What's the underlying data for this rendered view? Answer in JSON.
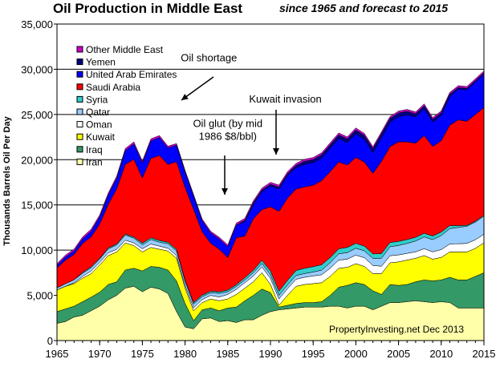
{
  "chart_data": {
    "type": "area",
    "stacked": true,
    "title": "Oil Production in Middle East",
    "subtitle": "since 1965 and forecast to 2015",
    "ylabel": "Thousands Barrels Oil Per Day",
    "xlabel": "",
    "xlim": [
      1965,
      2015
    ],
    "ylim": [
      0,
      35000
    ],
    "x_ticks": [
      1965,
      1970,
      1975,
      1980,
      1985,
      1990,
      1995,
      2000,
      2005,
      2010,
      2015
    ],
    "y_ticks": [
      0,
      5000,
      10000,
      15000,
      20000,
      25000,
      30000,
      35000
    ],
    "x_tick_labels": [
      "1965",
      "1970",
      "1975",
      "1980",
      "1985",
      "1990",
      "1995",
      "2000",
      "2005",
      "2010",
      "2015"
    ],
    "y_tick_labels": [
      "0",
      "5,000",
      "10,000",
      "15,000",
      "20,000",
      "25,000",
      "30,000",
      "35,000"
    ],
    "grid": true,
    "legend_position": "top-left",
    "source_note": "PropertyInvesting.net  Dec 2013",
    "x": [
      1965,
      1966,
      1967,
      1968,
      1969,
      1970,
      1971,
      1972,
      1973,
      1974,
      1975,
      1976,
      1977,
      1978,
      1979,
      1980,
      1981,
      1982,
      1983,
      1984,
      1985,
      1986,
      1987,
      1988,
      1989,
      1990,
      1991,
      1992,
      1993,
      1994,
      1995,
      1996,
      1997,
      1998,
      1999,
      2000,
      2001,
      2002,
      2003,
      2004,
      2005,
      2006,
      2007,
      2008,
      2009,
      2010,
      2011,
      2012,
      2013,
      2014,
      2015
    ],
    "series": [
      {
        "name": "Iran",
        "color": "#FFFFAA",
        "values": [
          1900,
          2100,
          2600,
          2800,
          3300,
          3800,
          4500,
          5000,
          5800,
          6000,
          5400,
          5900,
          5700,
          5200,
          3200,
          1500,
          1300,
          2400,
          2500,
          2100,
          2200,
          2000,
          2300,
          2300,
          2800,
          3200,
          3400,
          3500,
          3600,
          3700,
          3700,
          3700,
          3800,
          3800,
          3600,
          3800,
          3800,
          3400,
          3800,
          4200,
          4200,
          4300,
          4400,
          4300,
          4200,
          4300,
          4200,
          3600,
          3600,
          3600,
          3600
        ]
      },
      {
        "name": "Iraq",
        "color": "#339966",
        "values": [
          1300,
          1400,
          1200,
          1500,
          1500,
          1550,
          1700,
          1500,
          2000,
          2000,
          2300,
          2300,
          2400,
          2600,
          3400,
          2600,
          900,
          1000,
          1100,
          1200,
          1400,
          1700,
          2100,
          2700,
          2900,
          2100,
          300,
          400,
          500,
          500,
          500,
          600,
          1200,
          2100,
          2500,
          2600,
          2400,
          2100,
          1300,
          2000,
          1900,
          1900,
          2100,
          2400,
          2400,
          2400,
          2800,
          3100,
          3100,
          3500,
          3900
        ]
      },
      {
        "name": "Kuwait",
        "color": "#FFFF00",
        "values": [
          2400,
          2500,
          2500,
          2600,
          2600,
          3000,
          3200,
          3300,
          3000,
          2500,
          2100,
          2100,
          2000,
          2100,
          2500,
          1700,
          1100,
          800,
          1000,
          1100,
          1000,
          1400,
          1400,
          1500,
          1800,
          900,
          200,
          1100,
          1900,
          2000,
          2100,
          2100,
          2100,
          2100,
          2000,
          2100,
          2000,
          1900,
          2300,
          2400,
          2600,
          2700,
          2600,
          2700,
          2400,
          2500,
          2800,
          3100,
          3100,
          3100,
          3300
        ]
      },
      {
        "name": "Oman",
        "color": "#FFFFFF",
        "values": [
          0,
          0,
          100,
          200,
          300,
          300,
          300,
          300,
          300,
          300,
          350,
          370,
          340,
          310,
          300,
          290,
          330,
          330,
          390,
          420,
          500,
          560,
          600,
          640,
          640,
          680,
          700,
          740,
          780,
          800,
          850,
          880,
          900,
          900,
          900,
          950,
          960,
          900,
          820,
          780,
          770,
          740,
          710,
          760,
          810,
          860,
          880,
          910,
          940,
          950,
          960
        ]
      },
      {
        "name": "Qatar",
        "color": "#99CCFF",
        "values": [
          230,
          290,
          320,
          340,
          360,
          360,
          430,
          480,
          570,
          520,
          440,
          500,
          440,
          490,
          510,
          470,
          400,
          330,
          300,
          400,
          300,
          330,
          300,
          360,
          380,
          410,
          400,
          420,
          420,
          410,
          430,
          510,
          620,
          700,
          720,
          760,
          760,
          780,
          880,
          990,
          1050,
          1100,
          1200,
          1300,
          1350,
          1550,
          1700,
          1800,
          1900,
          1950,
          2000
        ]
      },
      {
        "name": "Syria",
        "color": "#33CCCC",
        "values": [
          0,
          0,
          0,
          100,
          100,
          80,
          110,
          110,
          110,
          130,
          190,
          190,
          180,
          170,
          170,
          170,
          170,
          170,
          170,
          170,
          180,
          190,
          250,
          270,
          350,
          400,
          470,
          500,
          550,
          580,
          590,
          600,
          560,
          550,
          580,
          540,
          520,
          500,
          520,
          470,
          450,
          430,
          410,
          400,
          400,
          390,
          330,
          200,
          100,
          100,
          100
        ]
      },
      {
        "name": "Saudi Arabia",
        "color": "#FF0000",
        "values": [
          2200,
          2600,
          2800,
          3200,
          3300,
          3800,
          4800,
          6100,
          7700,
          8600,
          7200,
          8800,
          9400,
          8600,
          9700,
          10200,
          10300,
          7000,
          5300,
          4700,
          3600,
          5200,
          4600,
          5700,
          5600,
          7100,
          8800,
          9100,
          9000,
          9000,
          9000,
          9300,
          9500,
          9600,
          9100,
          9500,
          9300,
          8900,
          10200,
          10600,
          11000,
          10800,
          10400,
          10800,
          9900,
          10100,
          11100,
          11700,
          11500,
          11800,
          11900
        ]
      },
      {
        "name": "United Arab Emirates",
        "color": "#0000FF",
        "values": [
          280,
          360,
          380,
          500,
          630,
          780,
          1060,
          1200,
          1530,
          1700,
          1660,
          1930,
          2000,
          1830,
          1830,
          1720,
          1470,
          1250,
          1150,
          1150,
          1200,
          1400,
          1600,
          1600,
          2000,
          2300,
          2500,
          2500,
          2400,
          2500,
          2500,
          2500,
          2600,
          2600,
          2500,
          2600,
          2500,
          2300,
          2600,
          2700,
          2800,
          3000,
          2900,
          3000,
          2700,
          2800,
          3200,
          3400,
          3500,
          3600,
          3700
        ]
      },
      {
        "name": "Yemen",
        "color": "#000080",
        "values": [
          0,
          0,
          0,
          0,
          0,
          0,
          0,
          0,
          0,
          0,
          0,
          0,
          0,
          0,
          0,
          0,
          0,
          0,
          0,
          0,
          0,
          0,
          150,
          170,
          180,
          190,
          200,
          200,
          220,
          340,
          350,
          360,
          370,
          390,
          400,
          440,
          440,
          440,
          450,
          420,
          400,
          380,
          350,
          310,
          300,
          300,
          230,
          180,
          150,
          150,
          150
        ]
      },
      {
        "name": "Other Middle East",
        "color": "#CC00CC",
        "values": [
          200,
          210,
          210,
          220,
          230,
          220,
          210,
          200,
          220,
          220,
          220,
          220,
          210,
          200,
          180,
          180,
          180,
          170,
          180,
          190,
          200,
          210,
          210,
          210,
          210,
          220,
          220,
          220,
          220,
          220,
          220,
          220,
          220,
          220,
          220,
          220,
          220,
          220,
          210,
          210,
          210,
          210,
          210,
          200,
          200,
          200,
          200,
          200,
          200,
          200,
          200
        ]
      }
    ],
    "annotations": [
      {
        "lines": [
          "Oil shortage"
        ],
        "x": 1979.5,
        "y": 30900,
        "anchor": "start"
      },
      {
        "lines": [
          "Kuwait invasion"
        ],
        "x": 1987.5,
        "y": 26300,
        "anchor": "start"
      },
      {
        "lines": [
          "Oil glut (by mid",
          "1986  $8/bbl)"
        ],
        "x": 1985,
        "y": 23600,
        "anchor": "middle"
      }
    ]
  }
}
